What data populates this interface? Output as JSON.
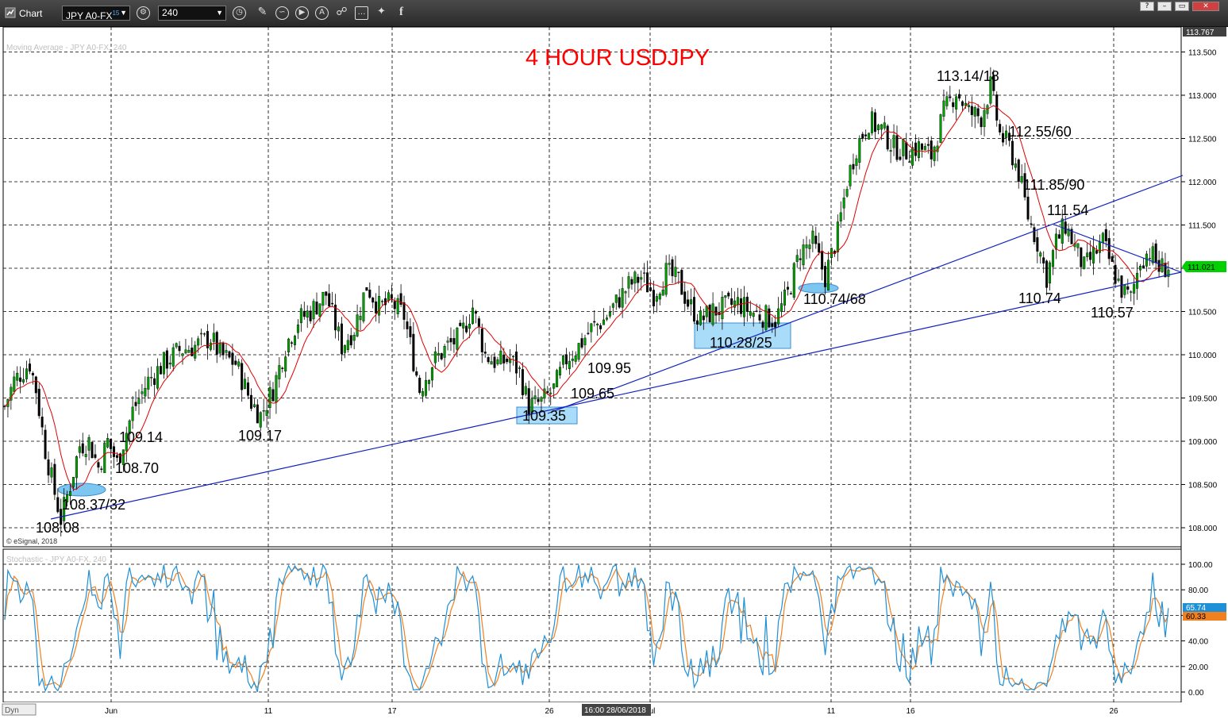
{
  "toolbar": {
    "app_title": "Chart",
    "symbol": "JPY A0-FX",
    "symbol_sup": "15",
    "interval": "240",
    "icons": [
      "gear-icon",
      "clock-icon",
      "draw-icon",
      "link-icon",
      "play-icon",
      "alert-icon",
      "chain-icon",
      "chat-icon",
      "twitter-icon",
      "facebook-icon"
    ],
    "window_buttons": [
      "?",
      "–",
      "▭",
      "✕"
    ]
  },
  "price_pane": {
    "study_label": "Moving Average - JPY A0-FX, 240",
    "copyright": "© eSignal, 2018",
    "y_top_value": "113.767",
    "ticks": [
      "113.500",
      "113.000",
      "112.500",
      "112.000",
      "111.500",
      "111.000",
      "110.500",
      "110.000",
      "109.500",
      "109.000",
      "108.500",
      "108.000"
    ],
    "current_price": "111.021",
    "colors": {
      "up": "#00a000",
      "down": "#000000",
      "ma": "#e00000",
      "trend": "#1020c0",
      "zone": "#9fd4f5"
    }
  },
  "stoch_pane": {
    "study_label": "Stochastic - JPY A0-FX, 240",
    "ticks": [
      "100.00",
      "80.00",
      "60.00",
      "40.00",
      "20.00",
      "0.00"
    ],
    "k_value": "65.74",
    "d_value": "60.33",
    "colors": {
      "k": "#1e90d8",
      "d": "#f08020"
    }
  },
  "x_axis": {
    "labels": [
      "Jun",
      "11",
      "17",
      "26",
      "Jul",
      "11",
      "16",
      "26"
    ],
    "cursor_label": "16:00 28/06/2018",
    "corner_label": "Dyn"
  },
  "chart_data": {
    "type": "candlestick",
    "title": "4 HOUR USDJPY",
    "symbol": "JPY A0-FX",
    "interval": "240",
    "ylim": [
      107.8,
      113.8
    ],
    "grid": true,
    "annotations": [
      "108.08",
      "108.37/32",
      "108.70",
      "109.14",
      "109.17",
      "109.35",
      "109.65",
      "109.95",
      "110.28/25",
      "110.74/68",
      "113.14/18",
      "112.55/60",
      "111.85/90",
      "111.54",
      "110.74",
      "110.57"
    ],
    "price_path": [
      [
        0,
        109.4
      ],
      [
        3,
        109.7
      ],
      [
        8,
        109.9
      ],
      [
        10,
        109.6
      ],
      [
        13,
        108.9
      ],
      [
        16,
        108.4
      ],
      [
        18,
        108.1
      ],
      [
        21,
        108.5
      ],
      [
        24,
        108.95
      ],
      [
        27,
        109.0
      ],
      [
        30,
        108.7
      ],
      [
        33,
        109.0
      ],
      [
        36,
        108.75
      ],
      [
        41,
        109.35
      ],
      [
        46,
        109.7
      ],
      [
        51,
        109.9
      ],
      [
        56,
        110.05
      ],
      [
        61,
        110.1
      ],
      [
        66,
        110.2
      ],
      [
        69,
        110.0
      ],
      [
        74,
        109.9
      ],
      [
        79,
        109.45
      ],
      [
        82,
        109.3
      ],
      [
        86,
        109.6
      ],
      [
        90,
        110.1
      ],
      [
        94,
        110.4
      ],
      [
        98,
        110.5
      ],
      [
        103,
        110.7
      ],
      [
        108,
        110.1
      ],
      [
        112,
        110.3
      ],
      [
        116,
        110.8
      ],
      [
        120,
        110.55
      ],
      [
        124,
        110.6
      ],
      [
        128,
        110.45
      ],
      [
        133,
        109.6
      ],
      [
        137,
        109.9
      ],
      [
        142,
        110.1
      ],
      [
        146,
        110.2
      ],
      [
        150,
        110.55
      ],
      [
        154,
        110.0
      ],
      [
        158,
        109.9
      ],
      [
        162,
        109.95
      ],
      [
        165,
        109.8
      ],
      [
        168,
        109.4
      ],
      [
        172,
        109.45
      ],
      [
        176,
        109.6
      ],
      [
        180,
        109.95
      ],
      [
        184,
        110.1
      ],
      [
        188,
        110.3
      ],
      [
        192,
        110.4
      ],
      [
        196,
        110.6
      ],
      [
        200,
        110.8
      ],
      [
        204,
        110.9
      ],
      [
        208,
        110.7
      ],
      [
        212,
        110.95
      ],
      [
        216,
        110.85
      ],
      [
        219,
        110.6
      ],
      [
        223,
        110.4
      ],
      [
        227,
        110.5
      ],
      [
        231,
        110.55
      ],
      [
        235,
        110.6
      ],
      [
        239,
        110.5
      ],
      [
        243,
        110.45
      ],
      [
        247,
        110.4
      ],
      [
        251,
        110.7
      ],
      [
        255,
        111.2
      ],
      [
        259,
        111.3
      ],
      [
        263,
        110.9
      ],
      [
        267,
        111.4
      ],
      [
        270,
        112.0
      ],
      [
        273,
        112.4
      ],
      [
        277,
        112.7
      ],
      [
        281,
        112.6
      ],
      [
        285,
        112.4
      ],
      [
        289,
        112.35
      ],
      [
        293,
        112.4
      ],
      [
        297,
        112.3
      ],
      [
        301,
        112.8
      ],
      [
        305,
        113.05
      ],
      [
        309,
        112.8
      ],
      [
        313,
        112.75
      ],
      [
        316,
        113.1
      ],
      [
        319,
        112.55
      ],
      [
        322,
        112.4
      ],
      [
        325,
        112.1
      ],
      [
        328,
        111.6
      ],
      [
        331,
        111.3
      ],
      [
        334,
        110.9
      ],
      [
        337,
        111.3
      ],
      [
        340,
        111.5
      ],
      [
        343,
        111.25
      ],
      [
        346,
        111.0
      ],
      [
        349,
        111.15
      ],
      [
        352,
        111.3
      ],
      [
        355,
        111.0
      ],
      [
        358,
        110.75
      ],
      [
        361,
        110.65
      ],
      [
        364,
        111.1
      ],
      [
        367,
        111.2
      ],
      [
        370,
        111.0
      ],
      [
        373,
        111.02
      ]
    ],
    "stochastic": {
      "k_last": 65.74,
      "d_last": 60.33,
      "overbought": 80,
      "oversold": 20
    }
  }
}
